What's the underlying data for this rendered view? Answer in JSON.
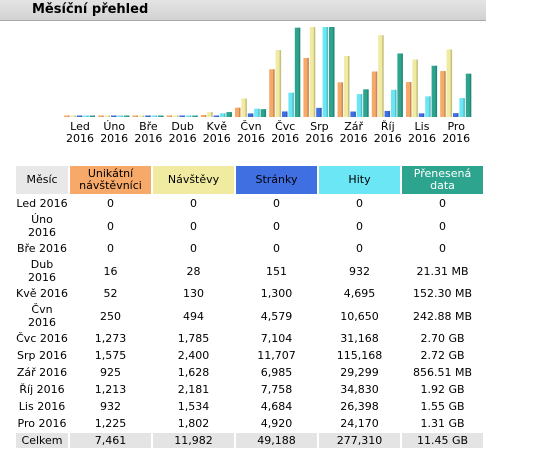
{
  "header": {
    "title": "Měsíční přehled"
  },
  "colors": {
    "unique": "#f6a968",
    "visits": "#f0eba0",
    "pages": "#3f6fe0",
    "hits": "#6ae6f4",
    "bytes": "#2da58e"
  },
  "chart_data": {
    "type": "bar",
    "categories": [
      "Led 2016",
      "Úno 2016",
      "Bře 2016",
      "Dub 2016",
      "Kvě 2016",
      "Čvn 2016",
      "Čvc 2016",
      "Srp 2016",
      "Zář 2016",
      "Říj 2016",
      "Lis 2016",
      "Pro 2016"
    ],
    "x_labels": [
      [
        "Led",
        "2016"
      ],
      [
        "Úno",
        "2016"
      ],
      [
        "Bře",
        "2016"
      ],
      [
        "Dub",
        "2016"
      ],
      [
        "Kvě",
        "2016"
      ],
      [
        "Čvn",
        "2016"
      ],
      [
        "Čvc",
        "2016"
      ],
      [
        "Srp",
        "2016"
      ],
      [
        "Zář",
        "2016"
      ],
      [
        "Říj",
        "2016"
      ],
      [
        "Lis",
        "2016"
      ],
      [
        "Pro",
        "2016"
      ]
    ],
    "series": [
      {
        "name": "Unikátní návštěvníci",
        "values": [
          0,
          0,
          0,
          16,
          52,
          250,
          1273,
          1575,
          925,
          1213,
          932,
          1225
        ]
      },
      {
        "name": "Návštěvy",
        "values": [
          0,
          0,
          0,
          28,
          130,
          494,
          1785,
          2400,
          1628,
          2181,
          1534,
          1802
        ]
      },
      {
        "name": "Stránky",
        "values": [
          0,
          0,
          0,
          151,
          1300,
          4579,
          7104,
          11707,
          6985,
          7758,
          4684,
          4920
        ]
      },
      {
        "name": "Hity",
        "values": [
          0,
          0,
          0,
          932,
          4695,
          10650,
          31168,
          115168,
          29299,
          34830,
          26398,
          24170
        ]
      },
      {
        "name": "Přenesená data",
        "values": [
          0,
          0,
          0,
          21.31,
          152.3,
          242.88,
          2764.8,
          2785.28,
          856.51,
          1966.08,
          1587.2,
          1341.44
        ]
      }
    ]
  },
  "table": {
    "headers": [
      "Měsíc",
      "Unikátní\nnávštěvníci",
      "Návštěvy",
      "Stránky",
      "Hity",
      "Přenesená\ndata"
    ],
    "rows": [
      [
        "Led 2016",
        "0",
        "0",
        "0",
        "0",
        "0"
      ],
      [
        "Úno 2016",
        "0",
        "0",
        "0",
        "0",
        "0"
      ],
      [
        "Bře 2016",
        "0",
        "0",
        "0",
        "0",
        "0"
      ],
      [
        "Dub 2016",
        "16",
        "28",
        "151",
        "932",
        "21.31 MB"
      ],
      [
        "Kvě 2016",
        "52",
        "130",
        "1,300",
        "4,695",
        "152.30 MB"
      ],
      [
        "Čvn 2016",
        "250",
        "494",
        "4,579",
        "10,650",
        "242.88 MB"
      ],
      [
        "Čvc 2016",
        "1,273",
        "1,785",
        "7,104",
        "31,168",
        "2.70 GB"
      ],
      [
        "Srp 2016",
        "1,575",
        "2,400",
        "11,707",
        "115,168",
        "2.72 GB"
      ],
      [
        "Zář 2016",
        "925",
        "1,628",
        "6,985",
        "29,299",
        "856.51 MB"
      ],
      [
        "Říj 2016",
        "1,213",
        "2,181",
        "7,758",
        "34,830",
        "1.92 GB"
      ],
      [
        "Lis 2016",
        "932",
        "1,534",
        "4,684",
        "26,398",
        "1.55 GB"
      ],
      [
        "Pro 2016",
        "1,225",
        "1,802",
        "4,920",
        "24,170",
        "1.31 GB"
      ]
    ],
    "total": [
      "Celkem",
      "7,461",
      "11,982",
      "49,188",
      "277,310",
      "11.45 GB"
    ]
  }
}
